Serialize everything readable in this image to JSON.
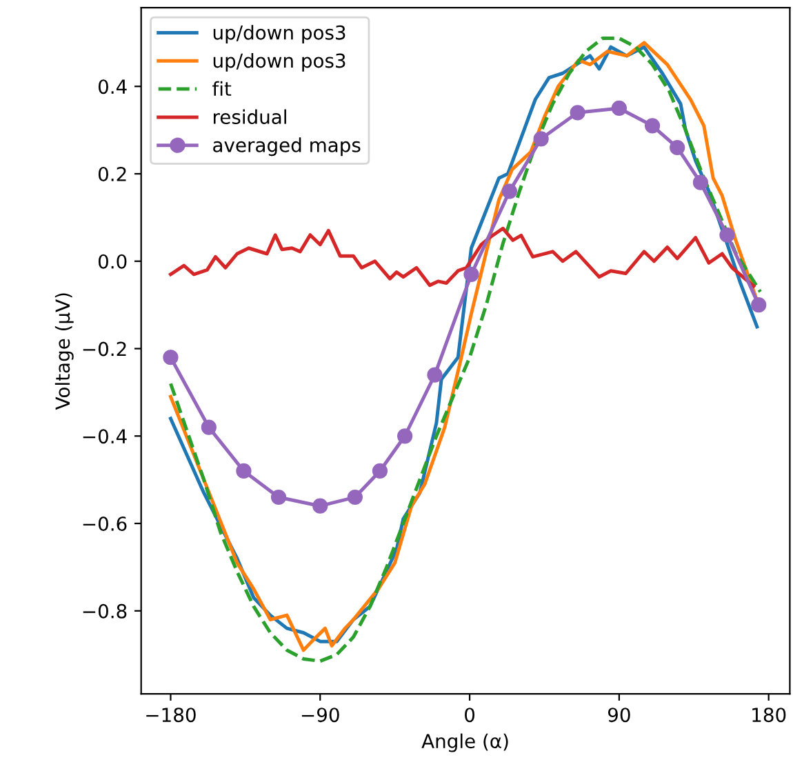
{
  "chart_data": {
    "type": "line",
    "xlabel": "Angle (α)",
    "ylabel": "Voltage (μV)",
    "xlim": [
      -197.75,
      192.75
    ],
    "ylim": [
      -0.99,
      0.58
    ],
    "xticks": [
      {
        "value": -180,
        "label": "−180"
      },
      {
        "value": -90,
        "label": "−90"
      },
      0,
      90,
      180
    ],
    "yticks": [
      {
        "value": -0.8,
        "label": "−0.8"
      },
      {
        "value": -0.6,
        "label": "−0.6"
      },
      {
        "value": -0.4,
        "label": "−0.4"
      },
      {
        "value": -0.2,
        "label": "−0.2"
      },
      {
        "value": 0,
        "label": "0.0"
      },
      {
        "value": 0.2,
        "label": "0.2"
      },
      {
        "value": 0.4,
        "label": "0.4"
      }
    ],
    "grid": false,
    "legend": "top left",
    "series": [
      {
        "name": "up/down pos3",
        "color": "#1f77b4",
        "marker": "none",
        "line_style": "solid",
        "x": [
          -180,
          -160,
          -140,
          -130,
          -120,
          -110,
          -100,
          -90,
          -80,
          -70,
          -60,
          -44,
          -40,
          -30,
          -20,
          -17,
          -7,
          1,
          17.6,
          23,
          39.5,
          47.8,
          56,
          72.5,
          78,
          85,
          94.5,
          105,
          116,
          127,
          130,
          136,
          144,
          155,
          163,
          173
        ],
        "values": [
          -0.36,
          -0.53,
          -0.68,
          -0.77,
          -0.81,
          -0.84,
          -0.85,
          -0.87,
          -0.87,
          -0.82,
          -0.79,
          -0.66,
          -0.59,
          -0.53,
          -0.37,
          -0.27,
          -0.22,
          0.03,
          0.19,
          0.2,
          0.37,
          0.42,
          0.43,
          0.47,
          0.44,
          0.49,
          0.47,
          0.49,
          0.43,
          0.36,
          0.3,
          0.23,
          0.16,
          0.04,
          -0.05,
          -0.15
        ]
      },
      {
        "name": "up/down pos3",
        "color": "#ff7f0e",
        "marker": "none",
        "line_style": "solid",
        "x": [
          -180,
          -160,
          -140,
          -130,
          -120,
          -110,
          -100,
          -95,
          -87,
          -83,
          -75,
          -70,
          -55,
          -45,
          -35,
          -27,
          -15,
          -5,
          1,
          17.6,
          25.6,
          36.8,
          45,
          53.3,
          65.6,
          72.5,
          83,
          94.5,
          105,
          119,
          133,
          141,
          146.6,
          152,
          160,
          173
        ],
        "values": [
          -0.31,
          -0.5,
          -0.69,
          -0.75,
          -0.82,
          -0.81,
          -0.89,
          -0.87,
          -0.84,
          -0.88,
          -0.84,
          -0.82,
          -0.75,
          -0.69,
          -0.56,
          -0.51,
          -0.38,
          -0.22,
          -0.12,
          0.14,
          0.21,
          0.25,
          0.33,
          0.4,
          0.46,
          0.45,
          0.48,
          0.47,
          0.5,
          0.45,
          0.37,
          0.31,
          0.19,
          0.15,
          0.05,
          -0.09
        ]
      },
      {
        "name": "fit",
        "color": "#2ca02c",
        "marker": "none",
        "line_style": "dashed",
        "x": [
          -180,
          -170,
          -160,
          -150,
          -140,
          -130,
          -120,
          -110,
          -100,
          -90,
          -80,
          -70,
          -60,
          -50,
          -40,
          -30,
          -20,
          -10,
          0,
          10,
          20,
          30,
          40,
          50,
          60,
          70,
          80,
          90,
          100,
          110,
          120,
          130,
          140,
          150,
          160,
          170,
          175
        ],
        "values": [
          -0.28,
          -0.39,
          -0.5,
          -0.62,
          -0.71,
          -0.79,
          -0.85,
          -0.89,
          -0.91,
          -0.915,
          -0.9,
          -0.86,
          -0.79,
          -0.7,
          -0.6,
          -0.5,
          -0.4,
          -0.31,
          -0.22,
          -0.1,
          0.04,
          0.16,
          0.27,
          0.36,
          0.43,
          0.48,
          0.51,
          0.51,
          0.49,
          0.45,
          0.39,
          0.3,
          0.2,
          0.11,
          0.02,
          -0.04,
          -0.07
        ]
      },
      {
        "name": "residual",
        "color": "#d62728",
        "marker": "none",
        "line_style": "solid",
        "x": [
          -180,
          -172,
          -166,
          -158,
          -153,
          -147,
          -140,
          -133,
          -122,
          -117,
          -113,
          -107,
          -102,
          -96,
          -90,
          -85,
          -78,
          -70,
          -65,
          -57,
          -48,
          -44,
          -40,
          -32,
          -24,
          -19,
          -14,
          -7,
          -2,
          7,
          12,
          20,
          26,
          31,
          38,
          50,
          56,
          64,
          78,
          85,
          94,
          105,
          111,
          119,
          125,
          136,
          144,
          152,
          158,
          171
        ],
        "values": [
          -0.03,
          -0.01,
          -0.03,
          -0.02,
          0.01,
          -0.015,
          0.017,
          0.03,
          0.017,
          0.06,
          0.027,
          0.03,
          0.022,
          0.06,
          0.038,
          0.07,
          0.012,
          0.012,
          -0.015,
          0.0,
          -0.04,
          -0.025,
          -0.036,
          -0.015,
          -0.055,
          -0.046,
          -0.05,
          -0.022,
          -0.015,
          0.038,
          0.054,
          0.075,
          0.048,
          0.059,
          0.01,
          0.022,
          0.0,
          0.022,
          -0.036,
          -0.022,
          -0.028,
          0.022,
          0.0,
          0.032,
          0.006,
          0.054,
          -0.004,
          0.017,
          -0.015,
          -0.057
        ]
      },
      {
        "name": "averaged maps",
        "color": "#9467bd",
        "marker": "circle",
        "line_style": "solid",
        "x": [
          -180,
          -157,
          -136,
          -115,
          -90,
          -69,
          -54,
          -39,
          -21,
          1,
          24,
          43,
          65,
          90,
          110,
          125,
          139,
          155,
          174
        ],
        "values": [
          -0.22,
          -0.38,
          -0.48,
          -0.54,
          -0.56,
          -0.54,
          -0.48,
          -0.4,
          -0.26,
          -0.03,
          0.16,
          0.28,
          0.34,
          0.35,
          0.31,
          0.26,
          0.18,
          0.06,
          -0.1
        ]
      }
    ]
  }
}
